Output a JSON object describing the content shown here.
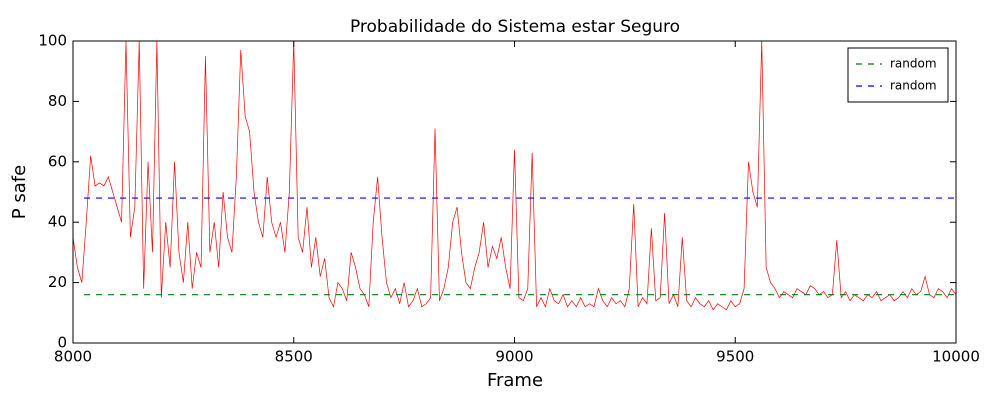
{
  "chart_data": {
    "type": "line",
    "title": "Probabilidade do Sistema estar Seguro",
    "xlabel": "Frame",
    "ylabel": "P safe",
    "xlim": [
      8000,
      10000
    ],
    "xticks": [
      8000,
      8500,
      9000,
      9500,
      10000
    ],
    "ylim": [
      0,
      100
    ],
    "yticks": [
      0,
      20,
      40,
      60,
      80,
      100
    ],
    "legend": "upper right",
    "series": [
      {
        "color": "#ff0000",
        "dash": "solid",
        "x": [
          8000,
          8010,
          8020,
          8030,
          8040,
          8050,
          8060,
          8070,
          8080,
          8090,
          8100,
          8110,
          8120,
          8130,
          8140,
          8150,
          8160,
          8170,
          8180,
          8190,
          8200,
          8210,
          8220,
          8230,
          8240,
          8250,
          8260,
          8270,
          8280,
          8290,
          8300,
          8310,
          8320,
          8330,
          8340,
          8350,
          8360,
          8370,
          8380,
          8390,
          8400,
          8410,
          8420,
          8430,
          8440,
          8450,
          8460,
          8470,
          8480,
          8490,
          8500,
          8510,
          8520,
          8530,
          8540,
          8550,
          8560,
          8570,
          8580,
          8590,
          8600,
          8610,
          8620,
          8630,
          8640,
          8650,
          8660,
          8670,
          8680,
          8690,
          8700,
          8710,
          8720,
          8730,
          8740,
          8750,
          8760,
          8770,
          8780,
          8790,
          8800,
          8810,
          8820,
          8830,
          8840,
          8850,
          8860,
          8870,
          8880,
          8890,
          8900,
          8910,
          8920,
          8930,
          8940,
          8950,
          8960,
          8970,
          8980,
          8990,
          9000,
          9010,
          9020,
          9030,
          9040,
          9050,
          9060,
          9070,
          9080,
          9090,
          9100,
          9110,
          9120,
          9130,
          9140,
          9150,
          9160,
          9170,
          9180,
          9190,
          9200,
          9210,
          9220,
          9230,
          9240,
          9250,
          9260,
          9270,
          9280,
          9290,
          9300,
          9310,
          9320,
          9330,
          9340,
          9350,
          9360,
          9370,
          9380,
          9390,
          9400,
          9410,
          9420,
          9430,
          9440,
          9450,
          9460,
          9470,
          9480,
          9490,
          9500,
          9510,
          9520,
          9530,
          9540,
          9550,
          9560,
          9570,
          9580,
          9590,
          9600,
          9610,
          9620,
          9630,
          9640,
          9650,
          9660,
          9670,
          9680,
          9690,
          9700,
          9710,
          9720,
          9730,
          9740,
          9750,
          9760,
          9770,
          9780,
          9790,
          9800,
          9810,
          9820,
          9830,
          9840,
          9850,
          9860,
          9870,
          9880,
          9890,
          9900,
          9910,
          9920,
          9930,
          9940,
          9950,
          9960,
          9970,
          9980,
          9990,
          10000
        ],
        "values": [
          35,
          25,
          20,
          40,
          62,
          52,
          53,
          52,
          55,
          50,
          45,
          40,
          100,
          35,
          45,
          100,
          18,
          60,
          30,
          100,
          15,
          40,
          25,
          60,
          30,
          20,
          40,
          18,
          30,
          25,
          95,
          30,
          40,
          25,
          50,
          35,
          30,
          55,
          97,
          75,
          70,
          50,
          40,
          35,
          55,
          40,
          35,
          40,
          30,
          50,
          100,
          35,
          30,
          45,
          25,
          35,
          22,
          28,
          15,
          12,
          20,
          18,
          14,
          30,
          25,
          18,
          16,
          12,
          40,
          55,
          35,
          20,
          15,
          18,
          13,
          20,
          12,
          14,
          18,
          12,
          13,
          15,
          71,
          14,
          18,
          25,
          40,
          45,
          30,
          20,
          18,
          25,
          30,
          40,
          25,
          32,
          28,
          35,
          25,
          18,
          64,
          15,
          14,
          18,
          63,
          12,
          15,
          12,
          18,
          14,
          13,
          16,
          12,
          14,
          12,
          15,
          12,
          13,
          12,
          18,
          14,
          12,
          15,
          13,
          14,
          12,
          18,
          46,
          12,
          15,
          13,
          38,
          14,
          15,
          43,
          13,
          16,
          12,
          35,
          14,
          12,
          15,
          13,
          12,
          14,
          11,
          13,
          12,
          11,
          14,
          12,
          13,
          18,
          60,
          50,
          45,
          100,
          25,
          20,
          18,
          15,
          17,
          16,
          15,
          18,
          17,
          16,
          19,
          18,
          16,
          17,
          15,
          16,
          34,
          15,
          17,
          14,
          16,
          15,
          14,
          16,
          15,
          17,
          14,
          15,
          16,
          14,
          15,
          17,
          15,
          18,
          16,
          17,
          22,
          16,
          15,
          18,
          17,
          15,
          18,
          16
        ]
      },
      {
        "name": "random",
        "color": "#008000",
        "dash": "dashed",
        "x": [
          8025,
          10000
        ],
        "values": [
          16,
          16
        ]
      },
      {
        "name": "random",
        "color": "#0000ff",
        "dash": "dashed",
        "x": [
          8025,
          10000
        ],
        "values": [
          48,
          48
        ]
      }
    ]
  }
}
